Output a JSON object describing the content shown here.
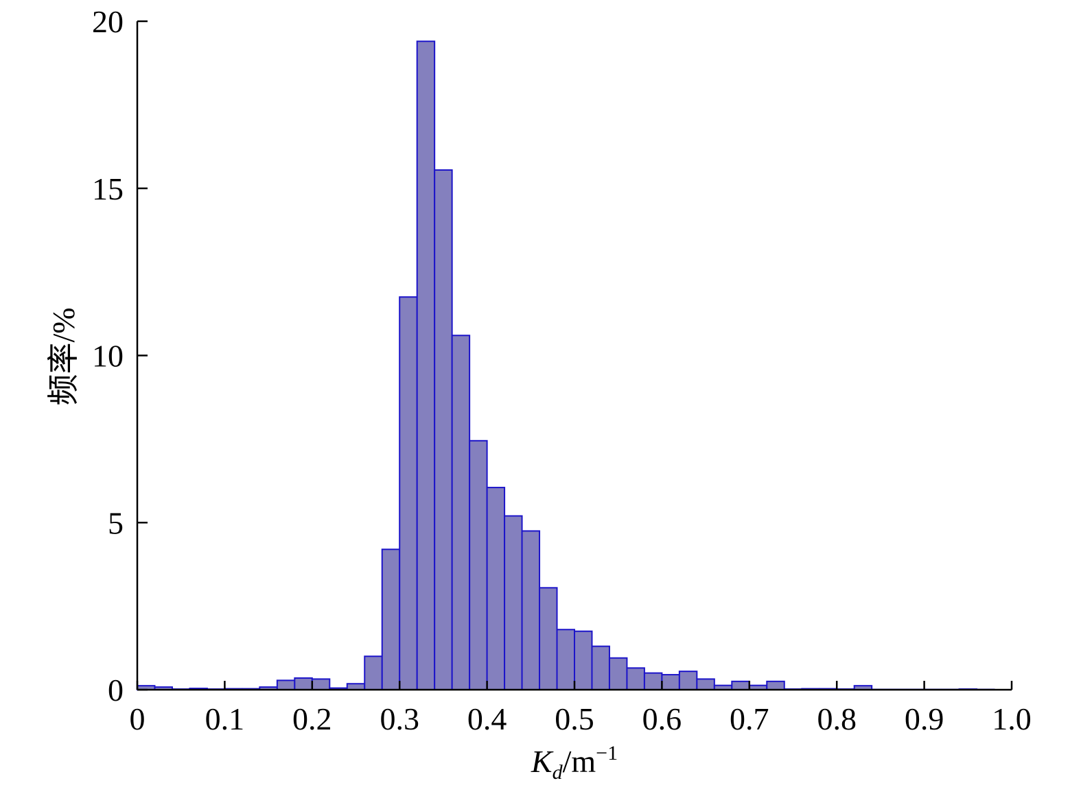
{
  "chart_data": {
    "type": "bar",
    "title": "",
    "xlabel": {
      "main": "K",
      "sub": "d",
      "unit": "/m",
      "sup": "−1"
    },
    "ylabel": "频率/%",
    "xlim": [
      0,
      1.0
    ],
    "ylim": [
      0,
      20
    ],
    "x_ticks": [
      "0",
      "0.1",
      "0.2",
      "0.3",
      "0.4",
      "0.5",
      "0.6",
      "0.7",
      "0.8",
      "0.9",
      "1.0"
    ],
    "y_ticks": [
      "0",
      "5",
      "10",
      "15",
      "20"
    ],
    "bin_width": 0.02,
    "bin_starts": [
      0.0,
      0.02,
      0.04,
      0.06,
      0.08,
      0.1,
      0.12,
      0.14,
      0.16,
      0.18,
      0.2,
      0.22,
      0.24,
      0.26,
      0.28,
      0.3,
      0.32,
      0.34,
      0.36,
      0.38,
      0.4,
      0.42,
      0.44,
      0.46,
      0.48,
      0.5,
      0.52,
      0.54,
      0.56,
      0.58,
      0.6,
      0.62,
      0.64,
      0.66,
      0.68,
      0.7,
      0.72,
      0.74,
      0.76,
      0.78,
      0.8,
      0.82,
      0.84,
      0.86,
      0.88,
      0.9,
      0.92,
      0.94,
      0.96
    ],
    "values": [
      0.12,
      0.08,
      0.02,
      0.04,
      0.02,
      0.03,
      0.03,
      0.08,
      0.28,
      0.35,
      0.32,
      0.05,
      0.18,
      1.0,
      4.2,
      11.75,
      19.4,
      15.55,
      10.6,
      7.45,
      6.05,
      5.2,
      4.75,
      3.05,
      1.8,
      1.75,
      1.3,
      0.95,
      0.65,
      0.5,
      0.45,
      0.55,
      0.32,
      0.13,
      0.25,
      0.13,
      0.25,
      0.02,
      0.03,
      0.03,
      0.02,
      0.12,
      0.01,
      0.01,
      0.01,
      0.01,
      0.01,
      0.02,
      0.01
    ],
    "grid": false,
    "legend": "none",
    "colors": {
      "fill": "#8480be",
      "stroke": "#1c14c9",
      "axis": "#000000"
    }
  }
}
